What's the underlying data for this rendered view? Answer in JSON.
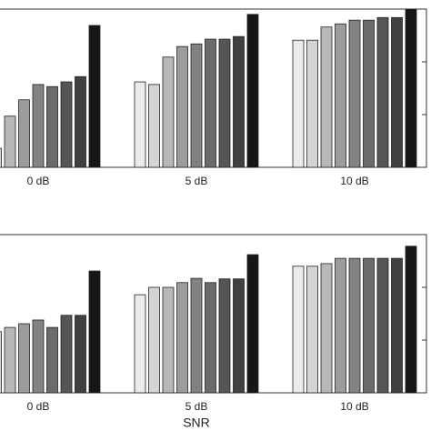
{
  "chart_data": [
    {
      "type": "bar",
      "categories": [
        "0 dB",
        "5 dB",
        "10 dB"
      ],
      "series": [
        {
          "color": "#ebebeb",
          "values": [
            null,
            1.62,
            2.41
          ]
        },
        {
          "color": "#d4d4d4",
          "values": [
            0.36,
            1.57,
            2.41
          ]
        },
        {
          "color": "#b8b8b8",
          "values": [
            0.97,
            2.09,
            2.66
          ]
        },
        {
          "color": "#9c9c9c",
          "values": [
            1.28,
            2.29,
            2.72
          ]
        },
        {
          "color": "#828282",
          "values": [
            1.57,
            2.34,
            2.79
          ]
        },
        {
          "color": "#6b6b6b",
          "values": [
            1.53,
            2.43,
            2.79
          ]
        },
        {
          "color": "#555555",
          "values": [
            1.62,
            2.43,
            2.84
          ]
        },
        {
          "color": "#404040",
          "values": [
            1.72,
            2.48,
            2.84
          ]
        },
        {
          "color": "#161616",
          "values": [
            2.69,
            2.9,
            3.0
          ]
        }
      ],
      "ylim": [
        0,
        3
      ],
      "yticks": [
        0,
        1,
        2,
        3
      ]
    },
    {
      "type": "bar",
      "categories": [
        "0 dB",
        "5 dB",
        "10 dB"
      ],
      "xlabel": "SNR",
      "series": [
        {
          "color": "#ebebeb",
          "values": [
            null,
            1.86,
            2.4
          ]
        },
        {
          "color": "#d4d4d4",
          "values": [
            1.16,
            2.0,
            2.4
          ]
        },
        {
          "color": "#b8b8b8",
          "values": [
            1.24,
            2.0,
            2.45
          ]
        },
        {
          "color": "#9c9c9c",
          "values": [
            1.31,
            2.09,
            2.55
          ]
        },
        {
          "color": "#828282",
          "values": [
            1.38,
            2.17,
            2.55
          ]
        },
        {
          "color": "#6b6b6b",
          "values": [
            1.24,
            2.09,
            2.55
          ]
        },
        {
          "color": "#555555",
          "values": [
            1.47,
            2.16,
            2.55
          ]
        },
        {
          "color": "#404040",
          "values": [
            1.47,
            2.16,
            2.55
          ]
        },
        {
          "color": "#161616",
          "values": [
            2.31,
            2.62,
            2.78
          ]
        }
      ],
      "ylim": [
        0,
        3
      ],
      "yticks": [
        0,
        1,
        2,
        3
      ]
    }
  ]
}
